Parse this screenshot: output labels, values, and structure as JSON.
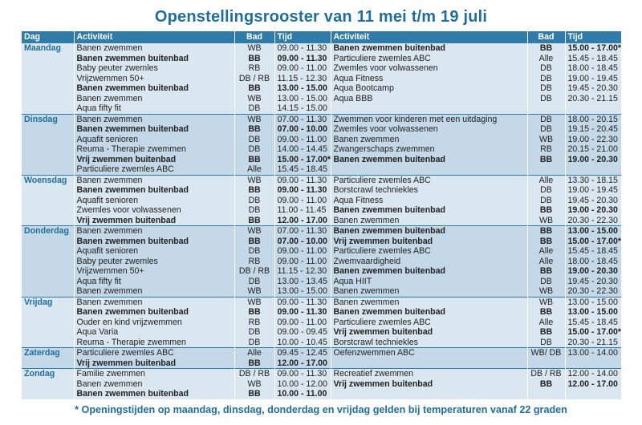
{
  "title": "Openstellingsrooster van 11 mei t/m 19 juli",
  "headers": [
    "Dag",
    "Activiteit",
    "Bad",
    "Tijd",
    "Activiteit",
    "Bad",
    "Tijd"
  ],
  "days": [
    {
      "day": "Maandag",
      "rows": [
        {
          "l": {
            "act": "Banen zwemmen",
            "bad": "WB",
            "tijd": "09.00 - 11.30",
            "bold": false
          },
          "r": {
            "act": "Banen zwemmen buitenbad",
            "bad": "BB",
            "tijd": "15.00 - 17.00*",
            "bold": true
          }
        },
        {
          "l": {
            "act": "Banen zwemmen buitenbad",
            "bad": "BB",
            "tijd": "09.00 - 11.30",
            "bold": true
          },
          "r": {
            "act": "Particuliere zwemles ABC",
            "bad": "Alle",
            "tijd": "15.45 - 18.45",
            "bold": false
          }
        },
        {
          "l": {
            "act": "Baby peuter zwemles",
            "bad": "RB",
            "tijd": "09.00 - 11.00",
            "bold": false
          },
          "r": {
            "act": "Zwemles voor volwassenen",
            "bad": "DB",
            "tijd": "18.00 - 18.45",
            "bold": false
          }
        },
        {
          "l": {
            "act": "Vrijzwemmen 50+",
            "bad": "DB / RB",
            "tijd": "11.15 - 12.30",
            "bold": false
          },
          "r": {
            "act": "Aqua Fitness",
            "bad": "DB",
            "tijd": "19.00 - 19.45",
            "bold": false
          }
        },
        {
          "l": {
            "act": "Banen zwemmen buitenbad",
            "bad": "BB",
            "tijd": "13.00 - 15.00",
            "bold": true
          },
          "r": {
            "act": "Aqua Bootcamp",
            "bad": "DB",
            "tijd": "19.45 - 20.30",
            "bold": false
          }
        },
        {
          "l": {
            "act": "Banen zwemmen",
            "bad": "WB",
            "tijd": "13.00 - 15.00",
            "bold": false
          },
          "r": {
            "act": "Aqua BBB",
            "bad": "DB",
            "tijd": "20.30 - 21.15",
            "bold": false
          }
        },
        {
          "l": {
            "act": "Aqua fifty fit",
            "bad": "DB",
            "tijd": "14.15 - 15.00",
            "bold": false
          },
          "r": {
            "act": "",
            "bad": "",
            "tijd": "",
            "bold": false
          }
        }
      ]
    },
    {
      "day": "Dinsdag",
      "rows": [
        {
          "l": {
            "act": "Banen zwemmen",
            "bad": "WB",
            "tijd": "07.00 - 11.30",
            "bold": false
          },
          "r": {
            "act": "Zwemmen voor kinderen met een uitdaging",
            "bad": "DB",
            "tijd": "18.00 - 20.15",
            "bold": false
          }
        },
        {
          "l": {
            "act": "Banen zwemmen buitenbad",
            "bad": "BB",
            "tijd": "07.00 - 10.00",
            "bold": true
          },
          "r": {
            "act": "Zwemles voor volwassenen",
            "bad": "DB",
            "tijd": "19.15 - 20.45",
            "bold": false
          }
        },
        {
          "l": {
            "act": "Aquafit senioren",
            "bad": "DB",
            "tijd": "09.00 - 11.00",
            "bold": false
          },
          "r": {
            "act": "Banen zwemmen",
            "bad": "WB",
            "tijd": "19.00 - 22.30",
            "bold": false
          }
        },
        {
          "l": {
            "act": "Reuma - Therapie zwemmen",
            "bad": "DB",
            "tijd": "14.00 - 14.45",
            "bold": false
          },
          "r": {
            "act": "Zwangerschaps zwemmen",
            "bad": "RB",
            "tijd": "20.15 - 21.00",
            "bold": false
          }
        },
        {
          "l": {
            "act": "Vrij zwemmen buitenbad",
            "bad": "BB",
            "tijd": "15.00 - 17.00*",
            "bold": true
          },
          "r": {
            "act": "Banen zwemmen buitenbad",
            "bad": "BB",
            "tijd": "19.00 - 20.30",
            "bold": true
          }
        },
        {
          "l": {
            "act": "Particuliere zwemles ABC",
            "bad": "Alle",
            "tijd": "15.45 - 18.45",
            "bold": false
          },
          "r": {
            "act": "",
            "bad": "",
            "tijd": "",
            "bold": false
          }
        }
      ]
    },
    {
      "day": "Woensdag",
      "rows": [
        {
          "l": {
            "act": "Banen zwemmen",
            "bad": "WB",
            "tijd": "09.00 - 11.30",
            "bold": false
          },
          "r": {
            "act": "Particuliere zwemles ABC",
            "bad": "Alle",
            "tijd": "13.30 - 18.15",
            "bold": false
          }
        },
        {
          "l": {
            "act": "Banen zwemmen buitenbad",
            "bad": "BB",
            "tijd": "09.00 - 11.30",
            "bold": true
          },
          "r": {
            "act": "Borstcrawl techniekles",
            "bad": "DB",
            "tijd": "19.00 - 19.45",
            "bold": false
          }
        },
        {
          "l": {
            "act": "Aquafit senioren",
            "bad": "DB",
            "tijd": "09.00 - 11.00",
            "bold": false
          },
          "r": {
            "act": "Aqua Fitness",
            "bad": "DB",
            "tijd": "19.45 - 20.30",
            "bold": false
          }
        },
        {
          "l": {
            "act": "Zwemles voor volwassenen",
            "bad": "DB",
            "tijd": "11.00 - 11.45",
            "bold": false
          },
          "r": {
            "act": "Banen zwemmen buitenbad",
            "bad": "BB",
            "tijd": "19.00 - 20.30",
            "bold": true
          }
        },
        {
          "l": {
            "act": "Vrij zwemmen buitenbad",
            "bad": "BB",
            "tijd": "12.00 - 17.00",
            "bold": true
          },
          "r": {
            "act": "Banen zwemmen",
            "bad": "WB",
            "tijd": "20.30 - 22.30",
            "bold": false
          }
        }
      ]
    },
    {
      "day": "Donderdag",
      "rows": [
        {
          "l": {
            "act": "Banen zwemmen",
            "bad": "WB",
            "tijd": "07.00 - 11.30",
            "bold": false
          },
          "r": {
            "act": "Banen zwemmen buitenbad",
            "bad": "BB",
            "tijd": "13.00 - 15.00",
            "bold": true
          }
        },
        {
          "l": {
            "act": "Banen zwemmen buitenbad",
            "bad": "BB",
            "tijd": "07.00 - 10.00",
            "bold": true
          },
          "r": {
            "act": "Vrij zwemmen buitenbad",
            "bad": "BB",
            "tijd": "15.00 - 17.00*",
            "bold": true
          }
        },
        {
          "l": {
            "act": "Aquafit senioren",
            "bad": "DB",
            "tijd": "09.00 - 11.00",
            "bold": false
          },
          "r": {
            "act": "Particuliere zwemles ABC",
            "bad": "Alle",
            "tijd": "15.45 - 18.45",
            "bold": false
          }
        },
        {
          "l": {
            "act": "Baby peuter zwemles",
            "bad": "RB",
            "tijd": "09.00 - 11.00",
            "bold": false
          },
          "r": {
            "act": "Zwemvaardigheid",
            "bad": "Alle",
            "tijd": "18.00 - 18.45",
            "bold": false
          }
        },
        {
          "l": {
            "act": "Vrijzwemmen 50+",
            "bad": "DB / RB",
            "tijd": "11.15 - 12.30",
            "bold": false
          },
          "r": {
            "act": "Banen zwemmen buitenbad",
            "bad": "BB",
            "tijd": "19.00 - 20.30",
            "bold": true
          }
        },
        {
          "l": {
            "act": "Aqua fifty fit",
            "bad": "DB",
            "tijd": "13.00 - 13.45",
            "bold": false
          },
          "r": {
            "act": "Aqua HIIT",
            "bad": "DB",
            "tijd": "19.45 - 20.30",
            "bold": false
          }
        },
        {
          "l": {
            "act": "Banen zwemmen",
            "bad": "WB",
            "tijd": "13.00 - 15.00",
            "bold": false
          },
          "r": {
            "act": "Banen zwemmen",
            "bad": "WB",
            "tijd": "20.30 - 22.30",
            "bold": false
          }
        }
      ]
    },
    {
      "day": "Vrijdag",
      "rows": [
        {
          "l": {
            "act": "Banen zwemmen",
            "bad": "WB",
            "tijd": "09.00 - 11.30",
            "bold": false
          },
          "r": {
            "act": "Banen zwemmen",
            "bad": "WB",
            "tijd": "13.00 - 15.00",
            "bold": false
          }
        },
        {
          "l": {
            "act": "Banen zwemmen buitenbad",
            "bad": "BB",
            "tijd": "09.00 - 11.30",
            "bold": true
          },
          "r": {
            "act": "Banen zwemmen buitenbad",
            "bad": "BB",
            "tijd": "13.00 - 15.00",
            "bold": true
          }
        },
        {
          "l": {
            "act": "Ouder en kind vrijzwemmen",
            "bad": "RB",
            "tijd": "09.00 - 11.00",
            "bold": false
          },
          "r": {
            "act": "Particuliere zwemles ABC",
            "bad": "Alle",
            "tijd": "15.45 - 18.45",
            "bold": false
          }
        },
        {
          "l": {
            "act": "Aqua Varia",
            "bad": "DB",
            "tijd": "09.00 - 09.45",
            "bold": false
          },
          "r": {
            "act": "Vrij zwemmen buitenbad",
            "bad": "BB",
            "tijd": "15.00 - 17.00*",
            "bold": true
          }
        },
        {
          "l": {
            "act": "Reuma - Therapie zwemmen",
            "bad": "DB",
            "tijd": "10.00 - 10.45",
            "bold": false
          },
          "r": {
            "act": "Borstcrawl techniekles",
            "bad": "DB",
            "tijd": "20.30 - 21.15",
            "bold": false
          }
        }
      ]
    },
    {
      "day": "Zaterdag",
      "rows": [
        {
          "l": {
            "act": "Particuliere zwemles ABC",
            "bad": "Alle",
            "tijd": "09.45 - 12.45",
            "bold": false
          },
          "r": {
            "act": "Oefenzwemmen ABC",
            "bad": "WB/ DB",
            "tijd": "13.00 - 14.00",
            "bold": false
          }
        },
        {
          "l": {
            "act": "Vrij zwemmen buitenbad",
            "bad": "BB",
            "tijd": "12.00 - 17.00",
            "bold": true
          },
          "r": {
            "act": "",
            "bad": "",
            "tijd": "",
            "bold": false
          }
        }
      ]
    },
    {
      "day": "Zondag",
      "rows": [
        {
          "l": {
            "act": "Familie zwemmen",
            "bad": "DB / RB",
            "tijd": "09.00 - 11.30",
            "bold": false
          },
          "r": {
            "act": "Recreatief zwemmen",
            "bad": "DB / RB",
            "tijd": "12.00 - 14.00",
            "bold": false
          }
        },
        {
          "l": {
            "act": "Banen zwemmen",
            "bad": "WB",
            "tijd": "10.00 - 12.00",
            "bold": false
          },
          "r": {
            "act": "Vrij zwemmen buitenbad",
            "bad": "BB",
            "tijd": "12.00 - 17.00",
            "bold": true
          }
        },
        {
          "l": {
            "act": "Banen zwemmen buitenbad",
            "bad": "BB",
            "tijd": "10.00 - 11.00",
            "bold": true
          },
          "r": {
            "act": "",
            "bad": "",
            "tijd": "",
            "bold": false
          }
        }
      ]
    }
  ],
  "footnote": "* Openingstijden op maandag, dinsdag, donderdag en vrijdag gelden bij temperaturen vanaf 22 graden"
}
